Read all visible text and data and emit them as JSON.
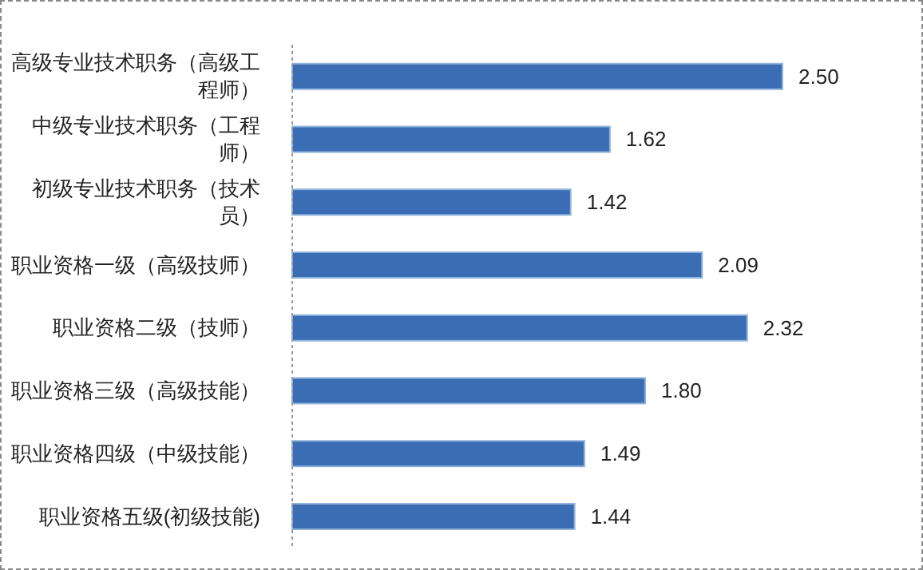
{
  "chart_data": {
    "type": "bar",
    "orientation": "horizontal",
    "categories": [
      "高级专业技术职务（高级工程师）",
      "中级专业技术职务（工程师）",
      "初级专业技术职务（技术员）",
      "职业资格一级（高级技师）",
      "职业资格二级（技师）",
      "职业资格三级（高级技能）",
      "职业资格四级（中级技能）",
      "职业资格五级(初级技能)"
    ],
    "values": [
      2.5,
      1.62,
      1.42,
      2.09,
      2.32,
      1.8,
      1.49,
      1.44
    ],
    "value_labels": [
      "2.50",
      "1.62",
      "1.42",
      "2.09",
      "2.32",
      "1.80",
      "1.49",
      "1.44"
    ],
    "color": "#3a6db4"
  }
}
